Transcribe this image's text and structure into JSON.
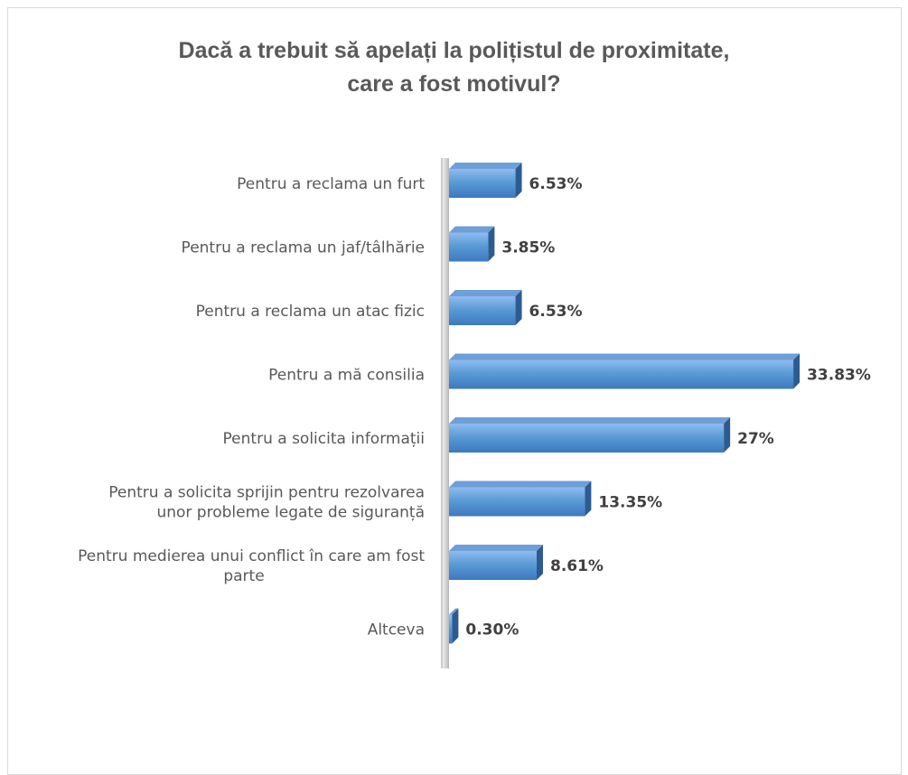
{
  "chart_data": {
    "type": "bar",
    "orientation": "horizontal",
    "title": "Dacă a trebuit să apelați la polițistul de proximitate, care a fost motivul?",
    "title_lines": [
      "Dacă a trebuit să apelați la polițistul de proximitate,",
      "care a fost motivul?"
    ],
    "categories": [
      [
        "Pentru a reclama un furt"
      ],
      [
        "Pentru a reclama un jaf/tâlhărie"
      ],
      [
        "Pentru a reclama un atac fizic"
      ],
      [
        "Pentru a mă consilia"
      ],
      [
        "Pentru a solicita informații"
      ],
      [
        "Pentru a solicita sprijin pentru rezolvarea",
        "unor probleme legate de siguranță"
      ],
      [
        "Pentru medierea unui conflict în care am fost",
        "parte"
      ],
      [
        "Altceva"
      ]
    ],
    "values": [
      6.53,
      3.85,
      6.53,
      33.83,
      27,
      13.35,
      8.61,
      0.3
    ],
    "value_labels": [
      "6.53%",
      "3.85%",
      "6.53%",
      "33.83%",
      "27%",
      "13.35%",
      "8.61%",
      "0.30%"
    ],
    "xlim": [
      0,
      34
    ],
    "xlabel": "",
    "ylabel": "",
    "grid": false,
    "legend": "none",
    "colors": {
      "bar_top": "#8fbcf0",
      "bar_mid": "#5b9bd5",
      "bar_bottom": "#3c78c0",
      "bar_depth": "#2c5b92",
      "bar_depth_top": "#6d9fd8",
      "axis": "#bfbfbf",
      "text": "#595959",
      "value_text": "#404040"
    }
  }
}
